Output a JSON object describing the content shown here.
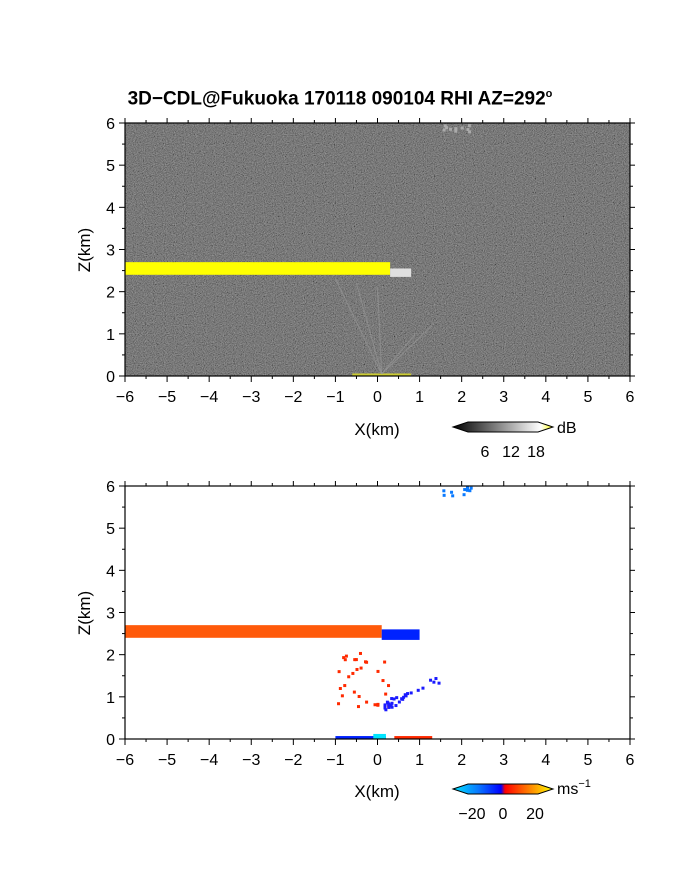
{
  "title": {
    "main": "3D−CDL@Fukuoka 170118 090104 RHI AZ=292",
    "superscript": "o"
  },
  "chart_data": [
    {
      "type": "heatmap",
      "quantity": "SNR",
      "xlabel": "X(km)",
      "ylabel": "Z(km)",
      "xlim": [
        -6,
        6
      ],
      "ylim": [
        0,
        6
      ],
      "x_ticks": [
        "−6",
        "−5",
        "−4",
        "−3",
        "−2",
        "−1",
        "0",
        "1",
        "2",
        "3",
        "4",
        "5",
        "6"
      ],
      "y_ticks": [
        "0",
        "1",
        "2",
        "3",
        "4",
        "5",
        "6"
      ],
      "background": "noise (grey speckle)",
      "features": [
        {
          "name": "cloud-layer",
          "x": [
            -6.0,
            0.3
          ],
          "z": [
            2.4,
            2.7
          ],
          "value_db": 18,
          "color": "#ffff00"
        },
        {
          "name": "cloud-edge",
          "x": [
            0.3,
            0.8
          ],
          "z": [
            2.35,
            2.55
          ],
          "value_db": 12,
          "color": "#e0e0e0"
        },
        {
          "name": "ground-echo",
          "x": [
            -0.6,
            0.8
          ],
          "z": [
            0.0,
            0.06
          ],
          "value_db": 15,
          "color": "#cccc33"
        },
        {
          "name": "top-echo",
          "x": [
            1.5,
            2.2
          ],
          "z": [
            5.8,
            6.0
          ],
          "value_db": 8,
          "color": "#aaaaaa"
        }
      ],
      "colorbar": {
        "unit": "dB",
        "tick_labels": [
          "6",
          "12",
          "18"
        ],
        "range": [
          0,
          21
        ]
      }
    },
    {
      "type": "heatmap",
      "quantity": "Doppler velocity",
      "xlabel": "X(km)",
      "ylabel": "Z(km)",
      "xlim": [
        -6,
        6
      ],
      "ylim": [
        0,
        6
      ],
      "x_ticks": [
        "−6",
        "−5",
        "−4",
        "−3",
        "−2",
        "−1",
        "0",
        "1",
        "2",
        "3",
        "4",
        "5",
        "6"
      ],
      "y_ticks": [
        "0",
        "1",
        "2",
        "3",
        "4",
        "5",
        "6"
      ],
      "features": [
        {
          "name": "cloud-layer",
          "x": [
            -6.0,
            0.1
          ],
          "z": [
            2.4,
            2.7
          ],
          "velocity": 6,
          "color": "#ff5a0a"
        },
        {
          "name": "cloud-layer-east",
          "x": [
            0.1,
            1.0
          ],
          "z": [
            2.35,
            2.6
          ],
          "velocity": -10,
          "color": "#0022ff"
        },
        {
          "name": "scatter-red",
          "x": [
            -1.1,
            0.3
          ],
          "z": [
            0.8,
            2.2
          ],
          "velocity": 4,
          "color": "#ff2a00"
        },
        {
          "name": "scatter-blue",
          "x": [
            0.1,
            1.6
          ],
          "z": [
            0.8,
            1.7
          ],
          "velocity": -12,
          "color": "#1a1aff"
        },
        {
          "name": "ground-blue",
          "x": [
            -1.0,
            0.2
          ],
          "z": [
            0.0,
            0.07
          ],
          "velocity": -12,
          "color": "#0022ff"
        },
        {
          "name": "ground-cyan",
          "x": [
            -0.1,
            0.2
          ],
          "z": [
            0.0,
            0.12
          ],
          "velocity": -22,
          "color": "#00e5ff"
        },
        {
          "name": "ground-red",
          "x": [
            0.4,
            1.3
          ],
          "z": [
            0.0,
            0.07
          ],
          "velocity": 4,
          "color": "#ff2a00"
        },
        {
          "name": "top-blue",
          "x": [
            1.3,
            2.4
          ],
          "z": [
            5.8,
            6.0
          ],
          "velocity": -16,
          "color": "#0a7aff"
        }
      ],
      "colorbar": {
        "unit": "ms",
        "unit_superscript": "−1",
        "tick_labels": [
          "−20",
          "0",
          "20"
        ],
        "range": [
          -28,
          28
        ]
      }
    }
  ],
  "colors": {
    "snr_high": "#ffff00",
    "vel_pos": "#ff5a0a",
    "vel_neg": "#0022ff",
    "vel_min": "#00e5ff"
  }
}
